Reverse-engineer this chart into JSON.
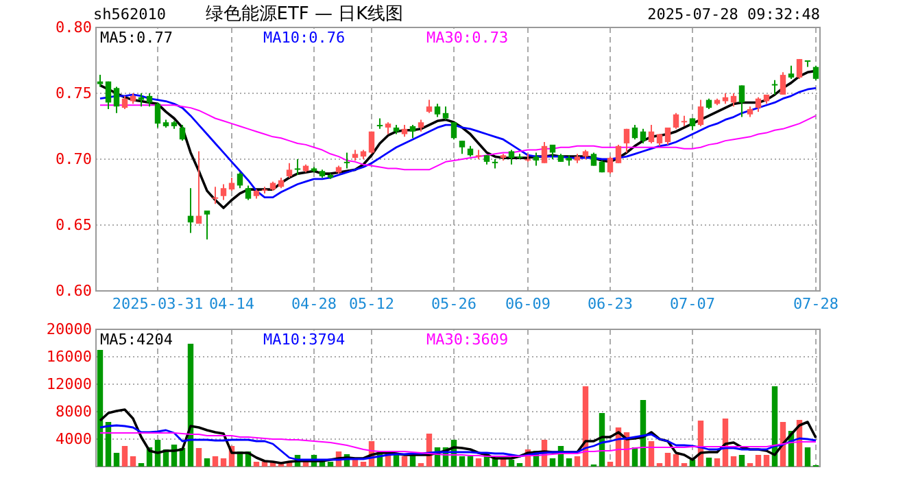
{
  "chart_data": [
    {
      "type": "candlestick",
      "title": "绿色能源ETF — 日K线图",
      "annotations": [
        "sh562010",
        "2025-07-28 09:32:48"
      ],
      "categories": [
        null,
        null,
        null,
        null,
        null,
        null,
        null,
        "2025-03-31",
        null,
        null,
        null,
        null,
        null,
        null,
        null,
        null,
        "04-14",
        null,
        null,
        null,
        null,
        null,
        null,
        null,
        null,
        null,
        "04-28",
        null,
        null,
        null,
        null,
        null,
        null,
        "05-12",
        null,
        null,
        null,
        null,
        null,
        null,
        null,
        null,
        null,
        "05-26",
        null,
        null,
        null,
        null,
        null,
        null,
        null,
        null,
        "06-09",
        null,
        null,
        null,
        null,
        null,
        null,
        null,
        null,
        null,
        "06-23",
        null,
        null,
        null,
        null,
        null,
        null,
        null,
        null,
        null,
        "07-07",
        null,
        null,
        null,
        null,
        null,
        null,
        null,
        null,
        null,
        null,
        null,
        null,
        null,
        null,
        "07-28"
      ],
      "ohlc": [
        [
          0.759,
          0.764,
          0.755,
          0.757
        ],
        [
          0.759,
          0.759,
          0.738,
          0.743
        ],
        [
          0.754,
          0.755,
          0.735,
          0.74
        ],
        [
          0.739,
          0.748,
          0.738,
          0.746
        ],
        [
          0.744,
          0.75,
          0.742,
          0.748
        ],
        [
          0.747,
          0.75,
          0.74,
          0.745
        ],
        [
          0.748,
          0.75,
          0.74,
          0.743
        ],
        [
          0.742,
          0.743,
          0.724,
          0.727
        ],
        [
          0.728,
          0.73,
          0.724,
          0.725
        ],
        [
          0.728,
          0.729,
          0.723,
          0.725
        ],
        [
          0.724,
          0.726,
          0.714,
          0.715
        ],
        [
          0.657,
          0.678,
          0.644,
          0.652
        ],
        [
          0.651,
          0.706,
          0.651,
          0.657
        ],
        [
          0.661,
          0.661,
          0.639,
          0.658
        ],
        [
          0.67,
          0.679,
          0.666,
          0.671
        ],
        [
          0.672,
          0.681,
          0.669,
          0.678
        ],
        [
          0.677,
          0.686,
          0.676,
          0.682
        ],
        [
          0.689,
          0.69,
          0.678,
          0.68
        ],
        [
          0.678,
          0.68,
          0.669,
          0.67
        ],
        [
          0.672,
          0.677,
          0.67,
          0.676
        ],
        [
          0.676,
          0.679,
          0.674,
          0.677
        ],
        [
          0.677,
          0.683,
          0.676,
          0.682
        ],
        [
          0.679,
          0.686,
          0.678,
          0.684
        ],
        [
          0.687,
          0.697,
          0.686,
          0.692
        ],
        [
          0.693,
          0.7,
          0.688,
          0.692
        ],
        [
          0.691,
          0.696,
          0.69,
          0.695
        ],
        [
          0.693,
          0.694,
          0.69,
          0.691
        ],
        [
          0.691,
          0.692,
          0.686,
          0.687
        ],
        [
          0.688,
          0.689,
          0.685,
          0.686
        ],
        [
          0.69,
          0.695,
          0.689,
          0.694
        ],
        [
          0.698,
          0.705,
          0.693,
          0.697
        ],
        [
          0.701,
          0.707,
          0.699,
          0.704
        ],
        [
          0.702,
          0.707,
          0.7,
          0.706
        ],
        [
          0.705,
          0.721,
          0.704,
          0.721
        ],
        [
          0.726,
          0.731,
          0.723,
          0.725
        ],
        [
          0.724,
          0.728,
          0.719,
          0.727
        ],
        [
          0.724,
          0.726,
          0.719,
          0.721
        ],
        [
          0.719,
          0.726,
          0.717,
          0.723
        ],
        [
          0.725,
          0.726,
          0.716,
          0.721
        ],
        [
          0.724,
          0.73,
          0.721,
          0.728
        ],
        [
          0.736,
          0.745,
          0.735,
          0.74
        ],
        [
          0.74,
          0.742,
          0.732,
          0.734
        ],
        [
          0.735,
          0.74,
          0.73,
          0.731
        ],
        [
          0.728,
          0.728,
          0.715,
          0.716
        ],
        [
          0.714,
          0.714,
          0.704,
          0.709
        ],
        [
          0.708,
          0.71,
          0.702,
          0.703
        ],
        [
          0.702,
          0.707,
          0.7,
          0.703
        ],
        [
          0.703,
          0.703,
          0.696,
          0.698
        ],
        [
          0.698,
          0.7,
          0.693,
          0.697
        ],
        [
          0.701,
          0.704,
          0.699,
          0.703
        ],
        [
          0.706,
          0.707,
          0.696,
          0.701
        ],
        [
          0.702,
          0.704,
          0.7,
          0.701
        ],
        [
          0.699,
          0.704,
          0.698,
          0.7
        ],
        [
          0.702,
          0.705,
          0.695,
          0.699
        ],
        [
          0.697,
          0.713,
          0.697,
          0.71
        ],
        [
          0.711,
          0.711,
          0.7,
          0.705
        ],
        [
          0.703,
          0.704,
          0.698,
          0.698
        ],
        [
          0.701,
          0.703,
          0.695,
          0.699
        ],
        [
          0.699,
          0.704,
          0.697,
          0.702
        ],
        [
          0.702,
          0.707,
          0.7,
          0.706
        ],
        [
          0.704,
          0.705,
          0.695,
          0.695
        ],
        [
          0.698,
          0.699,
          0.69,
          0.69
        ],
        [
          0.69,
          0.702,
          0.689,
          0.701
        ],
        [
          0.697,
          0.711,
          0.697,
          0.71
        ],
        [
          0.712,
          0.723,
          0.705,
          0.723
        ],
        [
          0.724,
          0.726,
          0.715,
          0.716
        ],
        [
          0.721,
          0.723,
          0.712,
          0.714
        ],
        [
          0.713,
          0.726,
          0.712,
          0.721
        ],
        [
          0.712,
          0.719,
          0.71,
          0.719
        ],
        [
          0.713,
          0.724,
          0.711,
          0.724
        ],
        [
          0.724,
          0.735,
          0.723,
          0.734
        ],
        [
          0.728,
          0.733,
          0.725,
          0.729
        ],
        [
          0.731,
          0.731,
          0.722,
          0.725
        ],
        [
          0.726,
          0.745,
          0.725,
          0.74
        ],
        [
          0.745,
          0.746,
          0.738,
          0.739
        ],
        [
          0.742,
          0.746,
          0.741,
          0.745
        ],
        [
          0.744,
          0.75,
          0.742,
          0.747
        ],
        [
          0.743,
          0.75,
          0.74,
          0.748
        ],
        [
          0.756,
          0.756,
          0.732,
          0.743
        ],
        [
          0.734,
          0.74,
          0.732,
          0.738
        ],
        [
          0.739,
          0.747,
          0.736,
          0.746
        ],
        [
          0.744,
          0.749,
          0.742,
          0.749
        ],
        [
          0.757,
          0.76,
          0.749,
          0.756
        ],
        [
          0.749,
          0.766,
          0.749,
          0.764
        ],
        [
          0.765,
          0.771,
          0.761,
          0.762
        ],
        [
          0.762,
          0.776,
          0.761,
          0.776
        ],
        [
          0.775,
          0.775,
          0.77,
          0.774
        ],
        [
          0.77,
          0.771,
          0.76,
          0.761
        ]
      ],
      "colors": [
        "#009900",
        "#009900",
        "#009900",
        "#ff5555",
        "#ff5555",
        "#009900",
        "#009900",
        "#009900",
        "#009900",
        "#009900",
        "#009900",
        "#009900",
        "#ff5555",
        "#009900",
        "#ff5555",
        "#ff5555",
        "#ff5555",
        "#009900",
        "#009900",
        "#ff5555",
        "#ff5555",
        "#ff5555",
        "#ff5555",
        "#ff5555",
        "#009900",
        "#ff5555",
        "#009900",
        "#009900",
        "#009900",
        "#ff5555",
        "#009900",
        "#ff5555",
        "#ff5555",
        "#ff5555",
        "#009900",
        "#ff5555",
        "#009900",
        "#ff5555",
        "#009900",
        "#ff5555",
        "#ff5555",
        "#009900",
        "#009900",
        "#009900",
        "#009900",
        "#009900",
        "#ff5555",
        "#009900",
        "#009900",
        "#ff5555",
        "#009900",
        "#009900",
        "#ff5555",
        "#009900",
        "#ff5555",
        "#009900",
        "#009900",
        "#009900",
        "#ff5555",
        "#ff5555",
        "#009900",
        "#009900",
        "#ff5555",
        "#ff5555",
        "#ff5555",
        "#009900",
        "#009900",
        "#ff5555",
        "#ff5555",
        "#ff5555",
        "#ff5555",
        "#ff5555",
        "#009900",
        "#ff5555",
        "#009900",
        "#ff5555",
        "#ff5555",
        "#ff5555",
        "#009900",
        "#ff5555",
        "#ff5555",
        "#ff5555",
        "#009900",
        "#ff5555",
        "#009900",
        "#ff5555",
        "#009900",
        "#009900"
      ],
      "series": [
        {
          "type": "line",
          "name": "MA5:0.77",
          "color": "#000000",
          "values": [
            0.756,
            0.753,
            0.75,
            0.747,
            0.745,
            0.744,
            0.743,
            0.742,
            0.736,
            0.731,
            0.724,
            0.705,
            0.691,
            0.676,
            0.669,
            0.663,
            0.669,
            0.674,
            0.677,
            0.677,
            0.677,
            0.677,
            0.682,
            0.686,
            0.689,
            0.69,
            0.691,
            0.689,
            0.689,
            0.69,
            0.691,
            0.692,
            0.696,
            0.703,
            0.712,
            0.718,
            0.721,
            0.722,
            0.722,
            0.723,
            0.726,
            0.729,
            0.73,
            0.728,
            0.724,
            0.719,
            0.712,
            0.705,
            0.702,
            0.701,
            0.701,
            0.701,
            0.701,
            0.702,
            0.702,
            0.703,
            0.702,
            0.702,
            0.702,
            0.702,
            0.701,
            0.699,
            0.698,
            0.701,
            0.705,
            0.71,
            0.714,
            0.717,
            0.718,
            0.719,
            0.721,
            0.724,
            0.727,
            0.73,
            0.733,
            0.736,
            0.739,
            0.742,
            0.743,
            0.743,
            0.743,
            0.745,
            0.749,
            0.754,
            0.758,
            0.763,
            0.766,
            0.767
          ]
        },
        {
          "type": "line",
          "name": "MA10:0.76",
          "color": "#0000ff",
          "values": [
            0.746,
            0.747,
            0.748,
            0.748,
            0.749,
            0.748,
            0.746,
            0.745,
            0.744,
            0.742,
            0.739,
            0.733,
            0.726,
            0.719,
            0.712,
            0.705,
            0.698,
            0.691,
            0.684,
            0.676,
            0.671,
            0.671,
            0.675,
            0.678,
            0.681,
            0.683,
            0.685,
            0.685,
            0.686,
            0.688,
            0.69,
            0.692,
            0.694,
            0.697,
            0.701,
            0.705,
            0.709,
            0.712,
            0.715,
            0.718,
            0.721,
            0.724,
            0.726,
            0.726,
            0.724,
            0.723,
            0.721,
            0.719,
            0.717,
            0.715,
            0.711,
            0.707,
            0.703,
            0.702,
            0.702,
            0.702,
            0.702,
            0.701,
            0.701,
            0.701,
            0.701,
            0.7,
            0.7,
            0.701,
            0.702,
            0.704,
            0.706,
            0.708,
            0.71,
            0.711,
            0.713,
            0.716,
            0.719,
            0.722,
            0.725,
            0.727,
            0.73,
            0.732,
            0.735,
            0.737,
            0.739,
            0.741,
            0.743,
            0.746,
            0.748,
            0.751,
            0.753,
            0.754
          ]
        },
        {
          "type": "line",
          "name": "MA30:0.73",
          "color": "#ff00ff",
          "values": [
            0.741,
            0.741,
            0.741,
            0.741,
            0.741,
            0.741,
            0.741,
            0.741,
            0.741,
            0.741,
            0.74,
            0.739,
            0.737,
            0.734,
            0.731,
            0.729,
            0.727,
            0.725,
            0.723,
            0.721,
            0.719,
            0.717,
            0.716,
            0.714,
            0.712,
            0.711,
            0.709,
            0.707,
            0.704,
            0.702,
            0.699,
            0.698,
            0.696,
            0.695,
            0.694,
            0.693,
            0.693,
            0.692,
            0.692,
            0.692,
            0.692,
            0.695,
            0.698,
            0.699,
            0.7,
            0.701,
            0.702,
            0.703,
            0.704,
            0.705,
            0.705,
            0.706,
            0.707,
            0.707,
            0.708,
            0.708,
            0.709,
            0.709,
            0.71,
            0.71,
            0.71,
            0.709,
            0.709,
            0.709,
            0.709,
            0.709,
            0.709,
            0.709,
            0.709,
            0.709,
            0.709,
            0.708,
            0.708,
            0.709,
            0.711,
            0.712,
            0.714,
            0.715,
            0.716,
            0.717,
            0.719,
            0.72,
            0.722,
            0.723,
            0.725,
            0.727,
            0.73,
            0.733
          ]
        }
      ],
      "ylim": [
        0.6,
        0.8
      ],
      "yticks": [
        {
          "value": 0.6,
          "label": "0.60"
        },
        {
          "value": 0.65,
          "label": "0.65"
        },
        {
          "value": 0.7,
          "label": "0.70"
        },
        {
          "value": 0.75,
          "label": "0.75"
        },
        {
          "value": 0.8,
          "label": "0.80"
        }
      ],
      "grid": true,
      "legend": "top left"
    },
    {
      "type": "bar",
      "categories": [
        null,
        null,
        null,
        null,
        null,
        null,
        null,
        null,
        null,
        null,
        null,
        null,
        null,
        null,
        null,
        null,
        null,
        null,
        null,
        null,
        null,
        null,
        null,
        null,
        null,
        null,
        null,
        null,
        null,
        null,
        null,
        null,
        null,
        null,
        null,
        null,
        null,
        null,
        null,
        null,
        null,
        null,
        null,
        null,
        null,
        null,
        null,
        null,
        null,
        null,
        null,
        null,
        null,
        null,
        null,
        null,
        null,
        null,
        null,
        null,
        null,
        null,
        null,
        null,
        null,
        null,
        null,
        null,
        null,
        null,
        null,
        null,
        null,
        null,
        null,
        null,
        null,
        null,
        null,
        null,
        null,
        null,
        null,
        null,
        null,
        null,
        null,
        null
      ],
      "series": [
        {
          "type": "bar",
          "colors": [
            "#009900",
            "#009900",
            "#009900",
            "#ff5555",
            "#ff5555",
            "#009900",
            "#009900",
            "#009900",
            "#009900",
            "#009900",
            "#009900",
            "#009900",
            "#ff5555",
            "#009900",
            "#ff5555",
            "#ff5555",
            "#ff5555",
            "#009900",
            "#009900",
            "#ff5555",
            "#ff5555",
            "#ff5555",
            "#ff5555",
            "#ff5555",
            "#009900",
            "#ff5555",
            "#009900",
            "#009900",
            "#009900",
            "#ff5555",
            "#009900",
            "#ff5555",
            "#ff5555",
            "#ff5555",
            "#009900",
            "#ff5555",
            "#009900",
            "#ff5555",
            "#009900",
            "#ff5555",
            "#ff5555",
            "#009900",
            "#009900",
            "#009900",
            "#009900",
            "#009900",
            "#ff5555",
            "#009900",
            "#009900",
            "#ff5555",
            "#009900",
            "#009900",
            "#ff5555",
            "#009900",
            "#ff5555",
            "#009900",
            "#009900",
            "#009900",
            "#ff5555",
            "#ff5555",
            "#009900",
            "#009900",
            "#ff5555",
            "#ff5555",
            "#ff5555",
            "#009900",
            "#009900",
            "#ff5555",
            "#ff5555",
            "#ff5555",
            "#ff5555",
            "#ff5555",
            "#009900",
            "#ff5555",
            "#009900",
            "#ff5555",
            "#ff5555",
            "#ff5555",
            "#009900",
            "#ff5555",
            "#ff5555",
            "#ff5555",
            "#009900",
            "#ff5555",
            "#009900",
            "#ff5555",
            "#009900",
            "#009900"
          ],
          "values": [
            17000,
            6500,
            2000,
            3000,
            1500,
            500,
            2800,
            3900,
            2500,
            3200,
            2700,
            17900,
            2700,
            1200,
            1500,
            1200,
            3000,
            2200,
            2200,
            700,
            700,
            700,
            500,
            700,
            1700,
            800,
            1700,
            1000,
            700,
            2200,
            1800,
            1200,
            700,
            3700,
            2000,
            2000,
            1900,
            1500,
            1700,
            500,
            4800,
            2800,
            2800,
            3900,
            1500,
            1500,
            1200,
            2000,
            1200,
            1200,
            1000,
            500,
            2500,
            2300,
            3900,
            1200,
            3000,
            1200,
            1500,
            11700,
            300,
            7800,
            700,
            5700,
            5000,
            2800,
            9700,
            3700,
            500,
            2000,
            1800,
            500,
            1000,
            6700,
            1300,
            1200,
            7000,
            1500,
            1700,
            500,
            1700,
            1700,
            11700,
            6500,
            5200,
            6800,
            2800,
            200
          ]
        },
        {
          "type": "line",
          "name": "MA5:4204",
          "color": "#000000",
          "values": [
            6700,
            7800,
            8100,
            8300,
            7000,
            4300,
            2300,
            2000,
            2300,
            2300,
            2500,
            5900,
            5700,
            5300,
            5000,
            4800,
            2000,
            2000,
            2000,
            1300,
            800,
            700,
            500,
            700,
            800,
            800,
            800,
            800,
            1000,
            1200,
            1300,
            1200,
            1200,
            1700,
            2000,
            2000,
            1900,
            1700,
            1700,
            1700,
            1700,
            2000,
            2300,
            2800,
            2700,
            2500,
            2000,
            1700,
            1200,
            1200,
            1200,
            1500,
            2000,
            2100,
            2200,
            2100,
            2100,
            2100,
            2100,
            3700,
            3700,
            4300,
            4300,
            5000,
            4000,
            4100,
            4300,
            5000,
            4000,
            3700,
            2000,
            1700,
            1000,
            2000,
            2100,
            2100,
            3300,
            3500,
            2800,
            2500,
            2500,
            2300,
            1700,
            3300,
            4700,
            6000,
            6500,
            4200
          ]
        },
        {
          "type": "line",
          "name": "MA10:3794",
          "color": "#0000ff",
          "values": [
            5700,
            5900,
            6000,
            5900,
            5700,
            5000,
            5000,
            5100,
            5300,
            4900,
            3700,
            3900,
            3900,
            3900,
            3800,
            3800,
            3900,
            3900,
            3900,
            3700,
            3700,
            3300,
            2300,
            1300,
            1000,
            1000,
            1000,
            1000,
            1000,
            1000,
            1100,
            1100,
            1100,
            1300,
            1500,
            1700,
            1800,
            1800,
            1900,
            1900,
            2000,
            2100,
            2100,
            2100,
            2100,
            2100,
            2000,
            2000,
            1900,
            1900,
            1700,
            1500,
            1700,
            1900,
            2000,
            2100,
            2100,
            2100,
            2100,
            2700,
            3000,
            3500,
            3700,
            4000,
            4100,
            4300,
            4500,
            4700,
            4000,
            3700,
            3100,
            3100,
            3000,
            2800,
            2500,
            2500,
            2700,
            2700,
            2500,
            2500,
            2500,
            2500,
            3000,
            3200,
            3700,
            4100,
            4000,
            3800
          ]
        },
        {
          "type": "line",
          "name": "MA30:3609",
          "color": "#ff00ff",
          "values": [
            4900,
            4900,
            4900,
            4900,
            4900,
            4900,
            4900,
            4900,
            4900,
            4900,
            4800,
            4700,
            4700,
            4500,
            4500,
            4500,
            4500,
            4300,
            4300,
            4200,
            4100,
            4000,
            4000,
            3900,
            3900,
            3800,
            3700,
            3600,
            3500,
            3300,
            3100,
            2800,
            2500,
            2300,
            2200,
            2200,
            2200,
            2200,
            2100,
            2000,
            1900,
            1800,
            1700,
            1700,
            1700,
            1600,
            1600,
            1500,
            1500,
            1500,
            1500,
            1500,
            1600,
            1600,
            1700,
            1800,
            1900,
            1900,
            1900,
            2200,
            2200,
            2300,
            2300,
            2500,
            2500,
            2700,
            2800,
            2800,
            2800,
            2800,
            2800,
            2800,
            2900,
            2900,
            2900,
            2900,
            2900,
            2900,
            2900,
            2900,
            2900,
            2900,
            3100,
            3300,
            3500,
            3600,
            3600,
            3600
          ]
        }
      ],
      "ylim": [
        0,
        20000
      ],
      "yticks": [
        4000,
        8000,
        12000,
        16000,
        20000
      ],
      "grid": true,
      "legend": "top left",
      "tick_labels": "y"
    }
  ]
}
